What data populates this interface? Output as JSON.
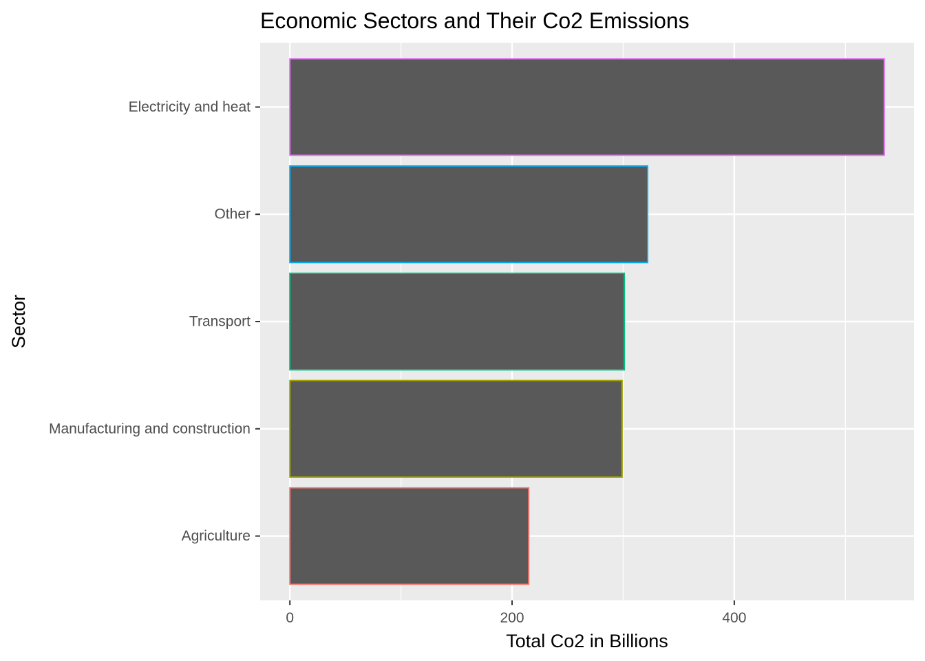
{
  "chart_data": {
    "type": "bar",
    "orientation": "horizontal",
    "title": "Economic Sectors and Their Co2 Emissions",
    "xlabel": "Total Co2 in Billions",
    "ylabel": "Sector",
    "categories": [
      "Electricity and heat",
      "Other",
      "Transport",
      "Manufacturing and construction",
      "Agriculture"
    ],
    "values": [
      535,
      322,
      301,
      299,
      215
    ],
    "bar_fill": "#595959",
    "outline_colors": [
      "#E76BF3",
      "#00B0F6",
      "#00BF7D",
      "#A3A500",
      "#F8766D"
    ],
    "xlim": [
      -26.75,
      561.75
    ],
    "xticks": [
      0,
      200,
      400
    ],
    "xtick_labels": [
      "0",
      "200",
      "400"
    ],
    "grid": true,
    "legend": "none",
    "panel_background": "#EBEBEB"
  }
}
